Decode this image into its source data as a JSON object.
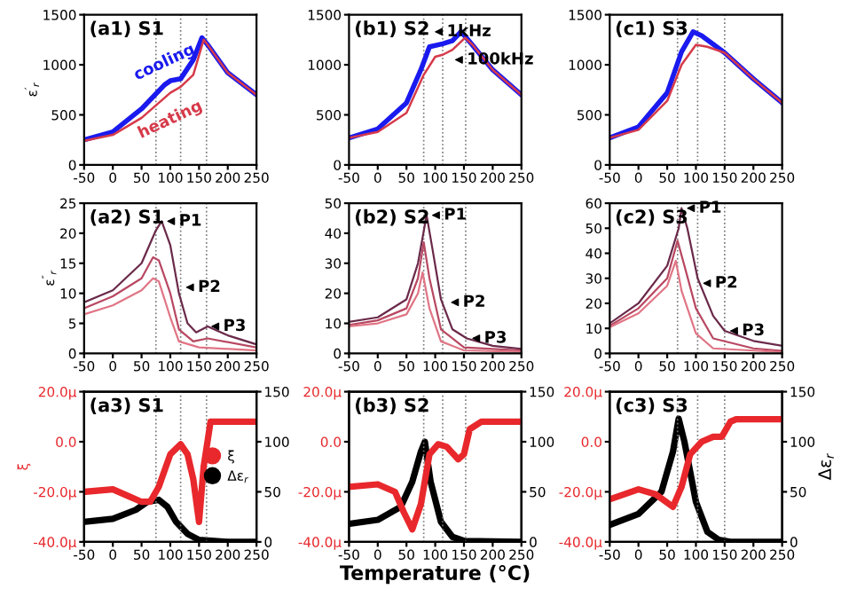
{
  "chart_data": [
    {
      "type": "line",
      "title": "(a1) S1",
      "ylabel": "ε$^{′}$$_{r}$",
      "xlim": [
        -50,
        250
      ],
      "xticks": [
        -50,
        0,
        50,
        100,
        150,
        200,
        250
      ],
      "ylim": [
        0,
        1500
      ],
      "yticks": [
        0,
        500,
        1000,
        1500
      ],
      "grid": false,
      "legend": false,
      "ref_lines": [
        {
          "axis": "x",
          "value": 75,
          "line_style": "dotted"
        },
        {
          "axis": "x",
          "value": 118,
          "line_style": "dotted"
        },
        {
          "axis": "x",
          "value": 163,
          "line_style": "dotted"
        }
      ],
      "series": [
        {
          "name": "cooling",
          "color": "#1a1aee",
          "x": [
            -50,
            0,
            50,
            90,
            100,
            118,
            140,
            155,
            165,
            200,
            250
          ],
          "values": [
            250,
            330,
            560,
            800,
            840,
            860,
            1050,
            1270,
            1200,
            920,
            700
          ]
        },
        {
          "name": "heating",
          "color": "#d63a4a",
          "x": [
            -50,
            0,
            50,
            100,
            118,
            140,
            158,
            165,
            200,
            250
          ],
          "values": [
            240,
            300,
            470,
            720,
            780,
            900,
            1250,
            1200,
            920,
            700
          ]
        }
      ]
    },
    {
      "type": "line",
      "title": "(b1) S2",
      "xlim": [
        -50,
        250
      ],
      "xticks": [
        -50,
        0,
        50,
        100,
        150,
        200,
        250
      ],
      "ylim": [
        0,
        1500
      ],
      "yticks": [
        0,
        500,
        1000,
        1500
      ],
      "grid": false,
      "legend": false,
      "annotations": [
        {
          "text": "1kHz",
          "x": 90,
          "y": 1330
        },
        {
          "text": "100kHz",
          "x": 125,
          "y": 1050
        }
      ],
      "ref_lines": [
        {
          "axis": "x",
          "value": 80,
          "line_style": "dotted"
        },
        {
          "axis": "x",
          "value": 113,
          "line_style": "dotted"
        },
        {
          "axis": "x",
          "value": 153,
          "line_style": "dotted"
        }
      ],
      "series": [
        {
          "color": "#1a1aee",
          "x": [
            -50,
            0,
            50,
            75,
            90,
            113,
            130,
            145,
            160,
            200,
            250
          ],
          "values": [
            270,
            360,
            620,
            950,
            1180,
            1210,
            1240,
            1330,
            1230,
            950,
            700
          ]
        },
        {
          "color": "#d63a4a",
          "x": [
            -50,
            0,
            50,
            80,
            100,
            113,
            130,
            152,
            165,
            200,
            250
          ],
          "values": [
            270,
            330,
            520,
            900,
            1080,
            1100,
            1150,
            1270,
            1200,
            950,
            700
          ]
        }
      ]
    },
    {
      "type": "line",
      "title": "(c1) S3",
      "xlim": [
        -50,
        250
      ],
      "xticks": [
        -50,
        0,
        50,
        100,
        150,
        200,
        250
      ],
      "ylim": [
        0,
        1500
      ],
      "yticks": [
        0,
        500,
        1000,
        1500
      ],
      "grid": false,
      "legend": false,
      "ref_lines": [
        {
          "axis": "x",
          "value": 68,
          "line_style": "dotted"
        },
        {
          "axis": "x",
          "value": 103,
          "line_style": "dotted"
        },
        {
          "axis": "x",
          "value": 150,
          "line_style": "dotted"
        }
      ],
      "series": [
        {
          "color": "#1a1aee",
          "x": [
            -50,
            0,
            50,
            75,
            95,
            110,
            150,
            200,
            250
          ],
          "values": [
            270,
            380,
            720,
            1130,
            1330,
            1290,
            1120,
            860,
            620
          ]
        },
        {
          "color": "#d63a4a",
          "x": [
            -50,
            0,
            50,
            75,
            100,
            120,
            150,
            200,
            250
          ],
          "values": [
            270,
            350,
            640,
            1000,
            1200,
            1180,
            1120,
            860,
            620
          ]
        }
      ]
    },
    {
      "type": "line",
      "title": "(a2) S1",
      "ylabel": "ε$^{″}$$_{r}$",
      "xlim": [
        -50,
        250
      ],
      "xticks": [
        -50,
        0,
        50,
        100,
        150,
        200,
        250
      ],
      "ylim": [
        0,
        25
      ],
      "yticks": [
        0,
        5,
        10,
        15,
        20,
        25
      ],
      "grid": false,
      "legend": false,
      "annotations": [
        {
          "text": "P1",
          "x": 85,
          "y": 22
        },
        {
          "text": "P2",
          "x": 118,
          "y": 11
        },
        {
          "text": "P3",
          "x": 162,
          "y": 4.5
        }
      ],
      "ref_lines": [
        {
          "axis": "x",
          "value": 75,
          "line_style": "dotted"
        },
        {
          "axis": "x",
          "value": 118,
          "line_style": "dotted"
        },
        {
          "axis": "x",
          "value": 163,
          "line_style": "dotted"
        }
      ],
      "series": [
        {
          "color": "#6a2a4a",
          "x": [
            -50,
            0,
            50,
            75,
            85,
            100,
            115,
            130,
            145,
            165,
            200,
            250
          ],
          "values": [
            8.5,
            10.5,
            15,
            20.5,
            22,
            18,
            10,
            5,
            3.5,
            4.5,
            3,
            1.5
          ]
        },
        {
          "color": "#b84862",
          "x": [
            -50,
            0,
            50,
            70,
            80,
            100,
            115,
            140,
            165,
            250
          ],
          "values": [
            7.5,
            9.5,
            12.5,
            16,
            15.5,
            10,
            4,
            2,
            2.5,
            1
          ]
        },
        {
          "color": "#e07585",
          "x": [
            -50,
            0,
            50,
            70,
            80,
            100,
            115,
            150,
            250
          ],
          "values": [
            6.5,
            8,
            10.5,
            12.5,
            12,
            6,
            2,
            1,
            0.5
          ]
        }
      ]
    },
    {
      "type": "line",
      "title": "(b2) S2",
      "xlim": [
        -50,
        250
      ],
      "xticks": [
        -50,
        0,
        50,
        100,
        150,
        200,
        250
      ],
      "ylim": [
        0,
        50
      ],
      "yticks": [
        0,
        10,
        20,
        30,
        40,
        50
      ],
      "grid": false,
      "legend": false,
      "annotations": [
        {
          "text": "P1",
          "x": 85,
          "y": 46
        },
        {
          "text": "P2",
          "x": 118,
          "y": 17
        },
        {
          "text": "P3",
          "x": 155,
          "y": 5
        }
      ],
      "ref_lines": [
        {
          "axis": "x",
          "value": 80,
          "line_style": "dotted"
        },
        {
          "axis": "x",
          "value": 113,
          "line_style": "dotted"
        },
        {
          "axis": "x",
          "value": 153,
          "line_style": "dotted"
        }
      ],
      "series": [
        {
          "color": "#6a2a4a",
          "x": [
            -50,
            0,
            50,
            70,
            85,
            95,
            110,
            130,
            155,
            200,
            250
          ],
          "values": [
            10.5,
            12,
            18,
            30,
            46,
            35,
            18,
            8,
            5,
            2.5,
            1.5
          ]
        },
        {
          "color": "#b84862",
          "x": [
            -50,
            0,
            50,
            70,
            80,
            90,
            110,
            150,
            250
          ],
          "values": [
            9.5,
            11,
            15,
            25,
            37,
            25,
            8,
            2,
            1
          ]
        },
        {
          "color": "#e07585",
          "x": [
            -50,
            0,
            50,
            70,
            78,
            90,
            110,
            150,
            250
          ],
          "values": [
            9,
            10,
            13,
            20,
            27,
            15,
            4,
            1,
            0.5
          ]
        }
      ]
    },
    {
      "type": "line",
      "title": "(c2) S3",
      "xlim": [
        -50,
        250
      ],
      "xticks": [
        -50,
        0,
        50,
        100,
        150,
        200,
        250
      ],
      "ylim": [
        0,
        60
      ],
      "yticks": [
        0,
        10,
        20,
        30,
        40,
        50,
        60
      ],
      "grid": false,
      "legend": false,
      "annotations": [
        {
          "text": "P1",
          "x": 75,
          "y": 58
        },
        {
          "text": "P2",
          "x": 103,
          "y": 28
        },
        {
          "text": "P3",
          "x": 150,
          "y": 9
        }
      ],
      "ref_lines": [
        {
          "axis": "x",
          "value": 68,
          "line_style": "dotted"
        },
        {
          "axis": "x",
          "value": 103,
          "line_style": "dotted"
        },
        {
          "axis": "x",
          "value": 150,
          "line_style": "dotted"
        }
      ],
      "series": [
        {
          "color": "#6a2a4a",
          "x": [
            -50,
            0,
            50,
            70,
            75,
            85,
            103,
            130,
            150,
            200,
            250
          ],
          "values": [
            12,
            20,
            35,
            50,
            58,
            50,
            30,
            15,
            9,
            5,
            3
          ]
        },
        {
          "color": "#b84862",
          "x": [
            -50,
            0,
            50,
            68,
            80,
            100,
            130,
            200,
            250
          ],
          "values": [
            11,
            18,
            30,
            45,
            35,
            18,
            6,
            2,
            1
          ]
        },
        {
          "color": "#e07585",
          "x": [
            -50,
            0,
            50,
            65,
            75,
            100,
            130,
            250
          ],
          "values": [
            10.5,
            16,
            27,
            37,
            25,
            8,
            2,
            0.5
          ]
        }
      ]
    },
    {
      "type": "line",
      "title": "(a3) S1",
      "ylabel": "ξ",
      "xlim": [
        -50,
        250
      ],
      "xticks": [
        -50,
        0,
        50,
        100,
        150,
        200,
        250
      ],
      "ylim": [
        -40,
        20
      ],
      "yticks": [
        {
          "value": -40,
          "label": "-40.0μ"
        },
        {
          "value": -20,
          "label": "-20.0μ"
        },
        {
          "value": 0,
          "label": "0.0"
        },
        {
          "value": 20,
          "label": "20.0μ"
        }
      ],
      "y2lim": [
        0,
        150
      ],
      "y2ticks": [
        0,
        50,
        100,
        150
      ],
      "grid": false,
      "legend": "right",
      "ref_lines": [
        {
          "axis": "x",
          "value": 75,
          "line_style": "dotted"
        },
        {
          "axis": "x",
          "value": 118,
          "line_style": "dotted"
        },
        {
          "axis": "x",
          "value": 163,
          "line_style": "dotted"
        }
      ],
      "series": [
        {
          "name": "ξ",
          "color": "#e8282c",
          "x": [
            -50,
            0,
            30,
            50,
            65,
            80,
            100,
            118,
            130,
            140,
            150,
            158,
            170,
            180,
            250
          ],
          "values": [
            -20,
            -19,
            -22,
            -24,
            -24,
            -18,
            -5,
            -1,
            -5,
            -15,
            -32,
            -10,
            8,
            8,
            8
          ]
        },
        {
          "name": "Δε$_{r}$",
          "color": "#000000",
          "axis": "y2",
          "x": [
            -50,
            0,
            40,
            60,
            80,
            95,
            110,
            130,
            150,
            200,
            250
          ],
          "values": [
            20,
            23,
            32,
            40,
            42,
            35,
            20,
            8,
            2,
            0,
            0
          ]
        }
      ]
    },
    {
      "type": "line",
      "title": "(b3) S2",
      "xlabel": "Temperature (°C)",
      "xlim": [
        -50,
        250
      ],
      "xticks": [
        -50,
        0,
        50,
        100,
        150,
        200,
        250
      ],
      "ylim": [
        -40,
        20
      ],
      "yticks": [
        {
          "value": -40,
          "label": "-40.0μ"
        },
        {
          "value": -20,
          "label": "-20.0μ"
        },
        {
          "value": 0,
          "label": "0.0"
        },
        {
          "value": 20,
          "label": "20.0μ"
        }
      ],
      "y2lim": [
        0,
        150
      ],
      "y2ticks": [
        0,
        50,
        100,
        150
      ],
      "grid": false,
      "legend": false,
      "ref_lines": [
        {
          "axis": "x",
          "value": 80,
          "line_style": "dotted"
        },
        {
          "axis": "x",
          "value": 113,
          "line_style": "dotted"
        },
        {
          "axis": "x",
          "value": 153,
          "line_style": "dotted"
        }
      ],
      "series": [
        {
          "color": "#e8282c",
          "x": [
            -50,
            0,
            30,
            45,
            60,
            75,
            90,
            105,
            120,
            140,
            150,
            160,
            180,
            250
          ],
          "values": [
            -18,
            -17,
            -20,
            -28,
            -35,
            -25,
            -5,
            -1,
            -2,
            -7,
            -5,
            5,
            8,
            8
          ]
        },
        {
          "color": "#000000",
          "axis": "y2",
          "x": [
            -50,
            0,
            40,
            60,
            75,
            82,
            92,
            110,
            130,
            150,
            250
          ],
          "values": [
            18,
            22,
            35,
            60,
            90,
            100,
            60,
            20,
            5,
            1,
            0
          ]
        }
      ]
    },
    {
      "type": "line",
      "title": "(c3) S3",
      "y2label": "Δε$_{r}$",
      "xlim": [
        -50,
        250
      ],
      "xticks": [
        -50,
        0,
        50,
        100,
        150,
        200,
        250
      ],
      "ylim": [
        -40,
        20
      ],
      "yticks": [
        {
          "value": -40,
          "label": "-40.0μ"
        },
        {
          "value": -20,
          "label": "-20.0μ"
        },
        {
          "value": 0,
          "label": "0.0"
        },
        {
          "value": 20,
          "label": "20.0μ"
        }
      ],
      "y2lim": [
        0,
        150
      ],
      "y2ticks": [
        0,
        50,
        100,
        150
      ],
      "grid": false,
      "legend": false,
      "ref_lines": [
        {
          "axis": "x",
          "value": 68,
          "line_style": "dotted"
        },
        {
          "axis": "x",
          "value": 103,
          "line_style": "dotted"
        },
        {
          "axis": "x",
          "value": 150,
          "line_style": "dotted"
        }
      ],
      "series": [
        {
          "color": "#e8282c",
          "x": [
            -50,
            0,
            30,
            60,
            75,
            90,
            110,
            130,
            145,
            160,
            170,
            250
          ],
          "values": [
            -23,
            -19,
            -21,
            -26,
            -18,
            -5,
            0,
            2,
            2,
            8,
            9,
            9
          ]
        },
        {
          "color": "#000000",
          "axis": "y2",
          "x": [
            -50,
            0,
            40,
            60,
            70,
            80,
            100,
            120,
            140,
            160,
            250
          ],
          "values": [
            17,
            28,
            50,
            90,
            123,
            100,
            40,
            10,
            2,
            0,
            0
          ]
        }
      ]
    }
  ]
}
